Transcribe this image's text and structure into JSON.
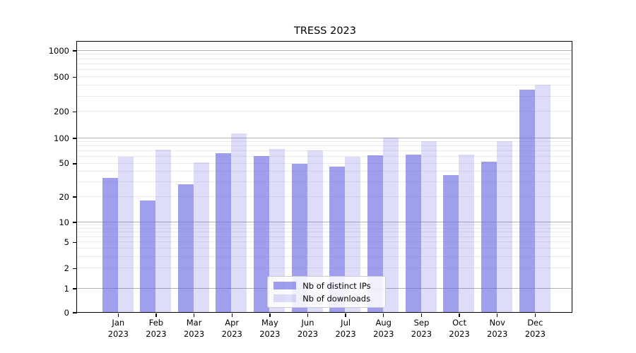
{
  "title": "TRESS 2023",
  "chart_data": {
    "type": "bar",
    "title": "TRESS 2023",
    "yscale": "symlog",
    "ylim": [
      0,
      1000
    ],
    "y_ticks": [
      0,
      1,
      2,
      5,
      10,
      20,
      50,
      100,
      200,
      500,
      1000
    ],
    "grid": true,
    "legend_position": "lower center",
    "months": [
      "Jan",
      "Feb",
      "Mar",
      "Apr",
      "May",
      "Jun",
      "Jul",
      "Aug",
      "Sep",
      "Oct",
      "Nov",
      "Dec"
    ],
    "year": "2023",
    "categories": [
      "Jan 2023",
      "Feb 2023",
      "Mar 2023",
      "Apr 2023",
      "May 2023",
      "Jun 2023",
      "Jul 2023",
      "Aug 2023",
      "Sep 2023",
      "Oct 2023",
      "Nov 2023",
      "Dec 2023"
    ],
    "series": [
      {
        "name": "Nb of distinct IPs",
        "color": "rgba(100,100,228,0.62)",
        "values": [
          33,
          18,
          28,
          66,
          61,
          49,
          45,
          62,
          63,
          36,
          52,
          353
        ]
      },
      {
        "name": "Nb of downloads",
        "color": "rgba(100,100,228,0.22)",
        "values": [
          60,
          72,
          51,
          113,
          74,
          71,
          60,
          100,
          91,
          63,
          91,
          403
        ]
      }
    ],
    "colors": {
      "bar_ips_rendered": "#a3a3f0",
      "bar_downloads_rendered": "#dcdcfa",
      "major_gridline": "#b0b0b0",
      "minor_gridline": "#ebebeb",
      "axis": "#000000"
    }
  }
}
